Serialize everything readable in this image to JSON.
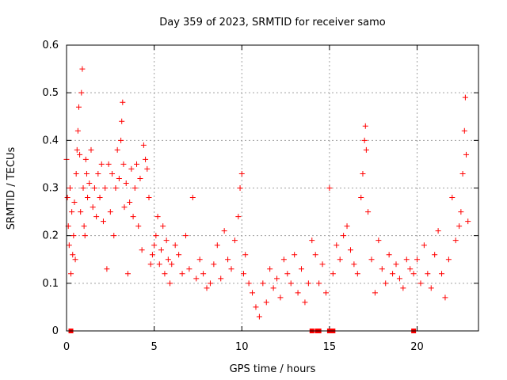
{
  "chart_data": {
    "type": "scatter",
    "title": "Day 359 of 2023, SRMTID for receiver samo",
    "xlabel": "GPS time / hours",
    "ylabel": "SRMTID / TECUs",
    "xlim": [
      0,
      23.5
    ],
    "ylim": [
      0,
      0.6
    ],
    "xticks": [
      0,
      5,
      10,
      15,
      20
    ],
    "xtick_labels": [
      "0",
      "5",
      "10",
      "15",
      "20"
    ],
    "yticks": [
      0,
      0.1,
      0.2,
      0.3,
      0.4,
      0.5,
      0.6
    ],
    "ytick_labels": [
      "0",
      "0.1",
      "0.2",
      "0.3",
      "0.4",
      "0.5",
      "0.6"
    ],
    "grid": true,
    "marker": "plus",
    "color": "#ff0000",
    "series": [
      {
        "name": "SRMTID",
        "points": [
          [
            0.0,
            0.36
          ],
          [
            0.05,
            0.28
          ],
          [
            0.1,
            0.22
          ],
          [
            0.15,
            0.18
          ],
          [
            0.2,
            0.3
          ],
          [
            0.25,
            0.12
          ],
          [
            0.3,
            0.25
          ],
          [
            0.35,
            0.16
          ],
          [
            0.4,
            0.2
          ],
          [
            0.45,
            0.27
          ],
          [
            0.5,
            0.15
          ],
          [
            0.55,
            0.33
          ],
          [
            0.6,
            0.38
          ],
          [
            0.65,
            0.42
          ],
          [
            0.7,
            0.47
          ],
          [
            0.75,
            0.37
          ],
          [
            0.8,
            0.25
          ],
          [
            0.85,
            0.5
          ],
          [
            0.9,
            0.55
          ],
          [
            0.95,
            0.3
          ],
          [
            1.0,
            0.22
          ],
          [
            1.05,
            0.2
          ],
          [
            1.1,
            0.36
          ],
          [
            1.15,
            0.33
          ],
          [
            1.2,
            0.28
          ],
          [
            1.3,
            0.31
          ],
          [
            1.4,
            0.38
          ],
          [
            1.5,
            0.26
          ],
          [
            1.6,
            0.3
          ],
          [
            1.7,
            0.24
          ],
          [
            1.8,
            0.33
          ],
          [
            1.9,
            0.28
          ],
          [
            2.0,
            0.35
          ],
          [
            2.1,
            0.23
          ],
          [
            2.2,
            0.3
          ],
          [
            2.3,
            0.13
          ],
          [
            2.4,
            0.35
          ],
          [
            2.5,
            0.25
          ],
          [
            2.6,
            0.33
          ],
          [
            2.7,
            0.2
          ],
          [
            2.8,
            0.3
          ],
          [
            2.9,
            0.38
          ],
          [
            3.0,
            0.32
          ],
          [
            3.1,
            0.4
          ],
          [
            3.15,
            0.44
          ],
          [
            3.2,
            0.48
          ],
          [
            3.25,
            0.35
          ],
          [
            3.3,
            0.26
          ],
          [
            3.4,
            0.31
          ],
          [
            3.5,
            0.12
          ],
          [
            3.6,
            0.27
          ],
          [
            3.7,
            0.34
          ],
          [
            3.8,
            0.24
          ],
          [
            3.9,
            0.3
          ],
          [
            4.0,
            0.35
          ],
          [
            4.1,
            0.22
          ],
          [
            4.2,
            0.32
          ],
          [
            4.3,
            0.17
          ],
          [
            4.4,
            0.39
          ],
          [
            4.5,
            0.36
          ],
          [
            4.6,
            0.34
          ],
          [
            4.7,
            0.28
          ],
          [
            4.8,
            0.14
          ],
          [
            4.9,
            0.16
          ],
          [
            5.0,
            0.18
          ],
          [
            5.1,
            0.2
          ],
          [
            5.2,
            0.24
          ],
          [
            5.3,
            0.14
          ],
          [
            5.4,
            0.17
          ],
          [
            5.5,
            0.22
          ],
          [
            5.6,
            0.12
          ],
          [
            5.7,
            0.19
          ],
          [
            5.8,
            0.15
          ],
          [
            5.9,
            0.1
          ],
          [
            6.0,
            0.14
          ],
          [
            6.2,
            0.18
          ],
          [
            6.4,
            0.16
          ],
          [
            6.6,
            0.12
          ],
          [
            6.8,
            0.2
          ],
          [
            7.0,
            0.13
          ],
          [
            7.2,
            0.28
          ],
          [
            7.4,
            0.11
          ],
          [
            7.6,
            0.15
          ],
          [
            7.8,
            0.12
          ],
          [
            8.0,
            0.09
          ],
          [
            8.2,
            0.1
          ],
          [
            8.4,
            0.14
          ],
          [
            8.6,
            0.18
          ],
          [
            8.8,
            0.11
          ],
          [
            9.0,
            0.21
          ],
          [
            9.2,
            0.15
          ],
          [
            9.4,
            0.13
          ],
          [
            9.6,
            0.19
          ],
          [
            9.8,
            0.24
          ],
          [
            9.9,
            0.3
          ],
          [
            10.0,
            0.33
          ],
          [
            10.1,
            0.12
          ],
          [
            10.2,
            0.16
          ],
          [
            10.4,
            0.1
          ],
          [
            10.6,
            0.08
          ],
          [
            10.8,
            0.05
          ],
          [
            11.0,
            0.03
          ],
          [
            11.2,
            0.1
          ],
          [
            11.4,
            0.06
          ],
          [
            11.6,
            0.13
          ],
          [
            11.8,
            0.09
          ],
          [
            12.0,
            0.11
          ],
          [
            12.2,
            0.07
          ],
          [
            12.4,
            0.15
          ],
          [
            12.6,
            0.12
          ],
          [
            12.8,
            0.1
          ],
          [
            13.0,
            0.16
          ],
          [
            13.2,
            0.08
          ],
          [
            13.4,
            0.13
          ],
          [
            13.6,
            0.06
          ],
          [
            13.8,
            0.1
          ],
          [
            14.0,
            0.19
          ],
          [
            14.2,
            0.16
          ],
          [
            14.4,
            0.1
          ],
          [
            14.6,
            0.14
          ],
          [
            14.8,
            0.08
          ],
          [
            15.0,
            0.3
          ],
          [
            15.2,
            0.12
          ],
          [
            15.4,
            0.18
          ],
          [
            15.6,
            0.15
          ],
          [
            15.8,
            0.2
          ],
          [
            16.0,
            0.22
          ],
          [
            16.2,
            0.17
          ],
          [
            16.4,
            0.14
          ],
          [
            16.6,
            0.12
          ],
          [
            16.8,
            0.28
          ],
          [
            16.9,
            0.33
          ],
          [
            17.0,
            0.4
          ],
          [
            17.05,
            0.43
          ],
          [
            17.1,
            0.38
          ],
          [
            17.2,
            0.25
          ],
          [
            17.4,
            0.15
          ],
          [
            17.6,
            0.08
          ],
          [
            17.8,
            0.19
          ],
          [
            18.0,
            0.13
          ],
          [
            18.2,
            0.1
          ],
          [
            18.4,
            0.16
          ],
          [
            18.6,
            0.12
          ],
          [
            18.8,
            0.14
          ],
          [
            19.0,
            0.11
          ],
          [
            19.2,
            0.09
          ],
          [
            19.4,
            0.15
          ],
          [
            19.6,
            0.13
          ],
          [
            19.8,
            0.12
          ],
          [
            20.0,
            0.15
          ],
          [
            20.2,
            0.1
          ],
          [
            20.4,
            0.18
          ],
          [
            20.6,
            0.12
          ],
          [
            20.8,
            0.09
          ],
          [
            21.0,
            0.16
          ],
          [
            21.2,
            0.21
          ],
          [
            21.4,
            0.12
          ],
          [
            21.6,
            0.07
          ],
          [
            21.8,
            0.15
          ],
          [
            22.0,
            0.28
          ],
          [
            22.2,
            0.19
          ],
          [
            22.4,
            0.22
          ],
          [
            22.5,
            0.25
          ],
          [
            22.6,
            0.33
          ],
          [
            22.7,
            0.42
          ],
          [
            22.75,
            0.49
          ],
          [
            22.8,
            0.37
          ],
          [
            22.9,
            0.23
          ]
        ]
      }
    ],
    "zero_markers": [
      0.25,
      14.0,
      14.3,
      14.4,
      15.0,
      15.2,
      19.8
    ]
  }
}
